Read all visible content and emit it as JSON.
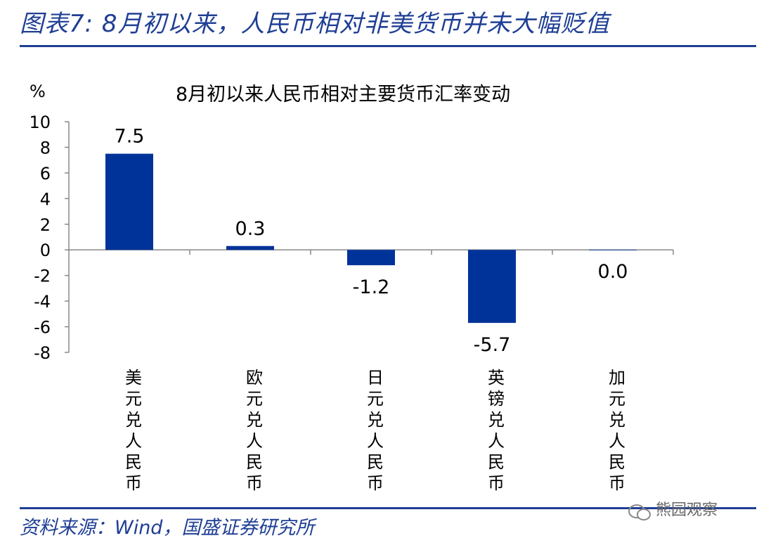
{
  "header": {
    "title": "图表7: 8月初以来，人民币相对非美货币并未大幅贬值"
  },
  "footer": {
    "source": "资料来源：Wind，国盛证券研究所"
  },
  "watermark": {
    "text": "熊园观察"
  },
  "chart_data": {
    "type": "bar",
    "title": "8月初以来人民币相对主要货币汇率变动",
    "unit": "%",
    "categories": [
      "美元兑人民币",
      "欧元兑人民币",
      "日元兑人民币",
      "英镑兑人民币",
      "加元兑人民币"
    ],
    "values": [
      7.5,
      0.3,
      -1.2,
      -5.7,
      0.0
    ],
    "value_labels": [
      "7.5",
      "0.3",
      "-1.2",
      "-5.7",
      "0.0"
    ],
    "ylim": [
      -8,
      10
    ],
    "yticks": [
      10,
      8,
      6,
      4,
      2,
      0,
      -2,
      -4,
      -6,
      -8
    ],
    "bar_color": "#003399",
    "grid": false,
    "legend": "none"
  }
}
